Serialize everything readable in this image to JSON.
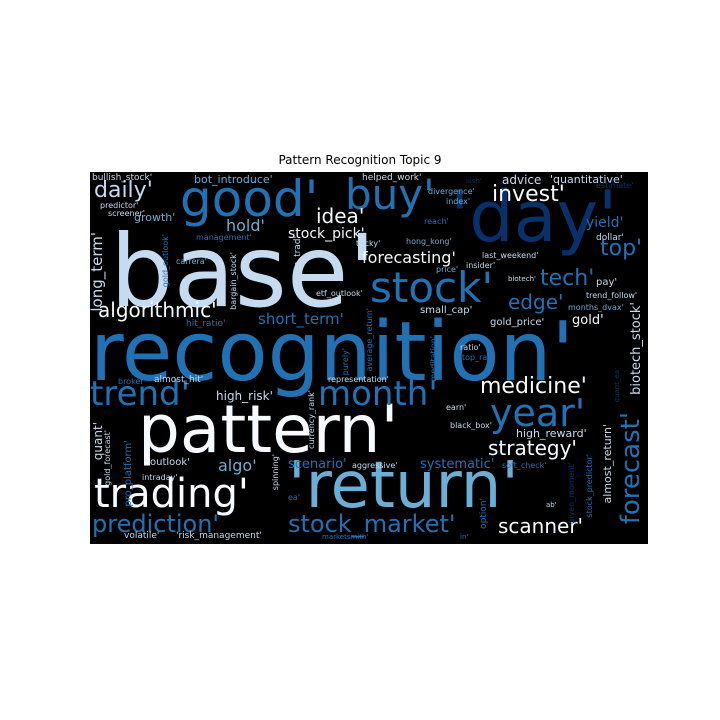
{
  "title": "Pattern Recognition Topic 9",
  "colors": {
    "background": "#000000",
    "palette": [
      "#f7fbff",
      "#c6dbef",
      "#6baed6",
      "#2171b5",
      "#08306b"
    ]
  },
  "words": [
    "base'",
    "recognition'",
    "pattern'",
    "'return'",
    "'day'",
    "good'",
    "buy'",
    "trading'",
    "stock'",
    "trend'",
    "month'",
    "year'",
    "prediction'",
    "stock_market'",
    "forecast'",
    "medicine'",
    "invest'",
    "daily'",
    "algorithmic'",
    "idea'",
    "hold'",
    "stock_pick'",
    "forecasting'",
    "tech'",
    "top'",
    "edge'",
    "strategy'",
    "scanner'",
    "algo'",
    "long_term'",
    "short_term'",
    "yield'",
    "gold'",
    "biotech_stock'",
    "quant'",
    "scenario'",
    "systematic'",
    "high_risk'",
    "high_reward'",
    "almost_return'",
    "advice",
    "'quantitative'",
    "bullish_stock'",
    "predictor'",
    "screener'",
    "growth'",
    "bot_introduce'",
    "helped_work'",
    "divergence'",
    "index'",
    "dollar'",
    "reach'",
    "hong_kong'",
    "last_weekend'",
    "insider'",
    "price'",
    "biotech'",
    "pay'",
    "trend_follow'",
    "months_dvax'",
    "gold_price'",
    "small_cap'",
    "etf_outlook'",
    "atom_trad'",
    "gold_outlook'",
    "bargain_stock'",
    "carrera'",
    "tricky'",
    "management'",
    "hit_ratio'",
    "broker'",
    "almost_hit'",
    "representation'",
    "average_return'",
    "meditation'",
    "purely'",
    "ratio'",
    "top_rat'",
    "currency_rank'",
    "earn'",
    "black_box'",
    "gold_forecast'",
    "pro_platform'",
    "outlook'",
    "intraday'",
    "spinning'",
    "aggressive'",
    "soft_check'",
    "stock_predictor'",
    "given_moment'",
    "option'",
    "volatile'",
    "'risk_management'",
    "marketsmith'",
    "ab'",
    "ea'",
    "estimate'",
    "iiish'",
    "quant_ea'",
    "in'"
  ]
}
